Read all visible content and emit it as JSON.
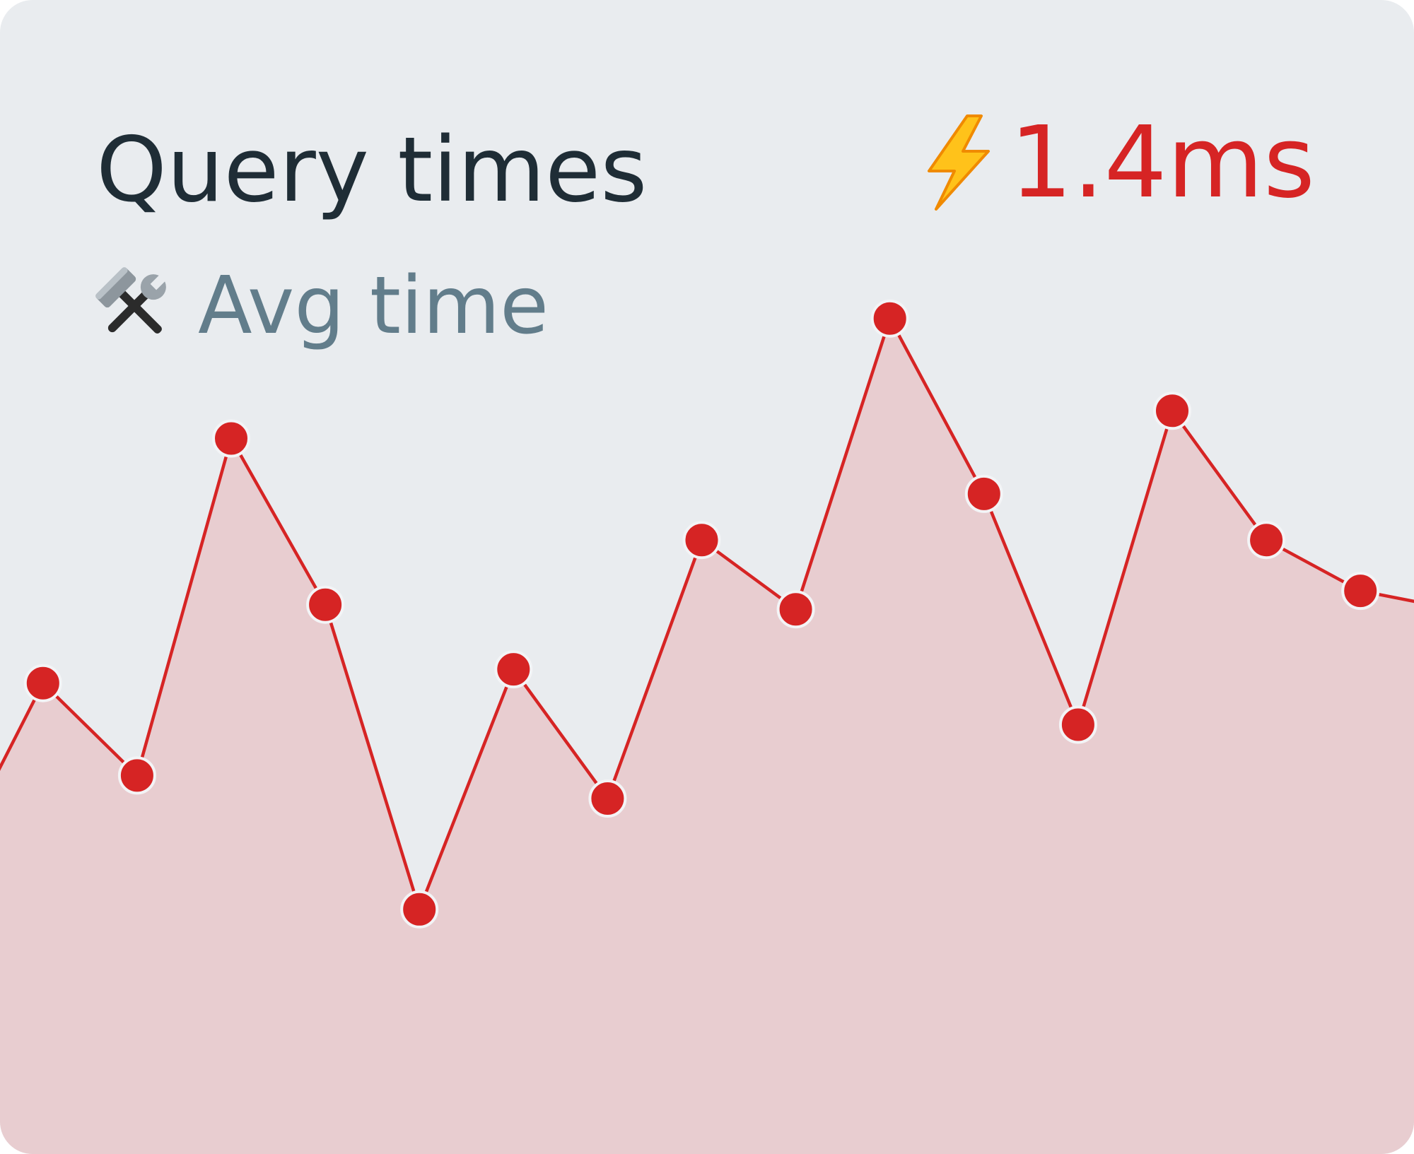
{
  "card": {
    "title": "Query times",
    "subtitle": "Avg time",
    "subtitle_icon": "hammer-and-wrench-icon",
    "metric_value": "1.4ms",
    "metric_icon": "lightning-bolt-icon"
  },
  "colors": {
    "card_background": "#e9ecef",
    "title": "#1f2d36",
    "subtitle": "#627d8b",
    "accent": "#d62424",
    "area_fill": "#e8cdd0"
  },
  "chart_data": {
    "type": "area",
    "x": [
      1,
      2,
      3,
      4,
      5,
      6,
      7,
      8,
      9,
      10,
      11,
      12,
      13,
      14,
      15,
      16,
      17
    ],
    "series": [
      {
        "values": [
          0.62,
          1.02,
          0.82,
          1.55,
          1.19,
          0.53,
          1.05,
          0.77,
          1.33,
          1.18,
          1.81,
          1.43,
          0.93,
          1.61,
          1.33,
          1.22,
          1.18
        ]
      }
    ],
    "markers": true,
    "grid": false,
    "xlabel": "",
    "ylabel": "",
    "ylim": [
      0,
      2.5
    ]
  }
}
